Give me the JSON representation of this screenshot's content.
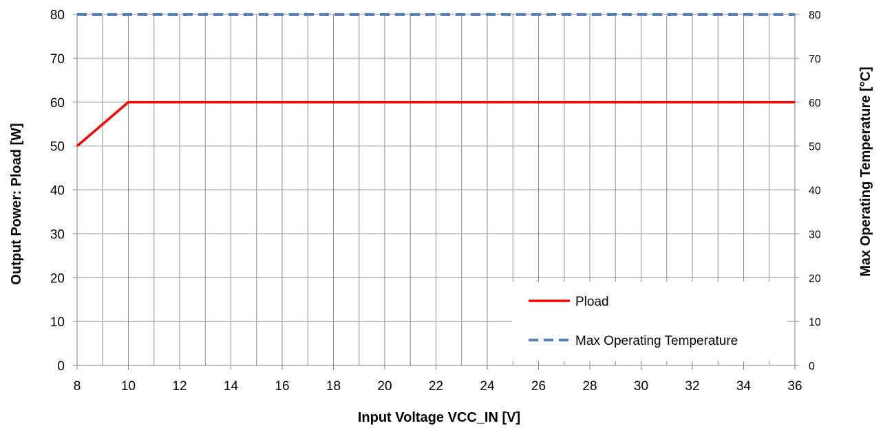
{
  "chart_data": {
    "type": "line",
    "title": "",
    "xlabel": "Input Voltage  VCC_IN [V]",
    "ylabel": "Output Power: Pload [W]",
    "y2label": "Max Operating Temperature [°C]",
    "xlim": [
      8,
      36
    ],
    "ylim": [
      0,
      80
    ],
    "y2lim": [
      0,
      80
    ],
    "x_ticks": [
      8,
      10,
      12,
      14,
      16,
      18,
      20,
      22,
      24,
      26,
      28,
      30,
      32,
      34,
      36
    ],
    "y_ticks": [
      0,
      10,
      20,
      30,
      40,
      50,
      60,
      70,
      80
    ],
    "y2_ticks": [
      0,
      10,
      20,
      30,
      40,
      50,
      60,
      70,
      80
    ],
    "grid": true,
    "legend_position": "bottom-right",
    "series": [
      {
        "name": "Pload",
        "axis": "left",
        "style": "solid",
        "color": "#ff0000",
        "x": [
          8,
          10,
          36
        ],
        "y": [
          50,
          60,
          60
        ]
      },
      {
        "name": "Max Operating Temperature",
        "axis": "right",
        "style": "dashed",
        "color": "#4f81bd",
        "x": [
          8,
          36
        ],
        "y": [
          80,
          80
        ]
      }
    ]
  }
}
